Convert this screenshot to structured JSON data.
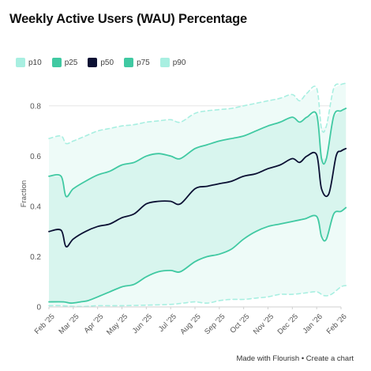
{
  "title": "Weekly Active Users (WAU) Percentage",
  "legend": [
    {
      "label": "p10",
      "color": "#a8efe1"
    },
    {
      "label": "p25",
      "color": "#40c9a2"
    },
    {
      "label": "p50",
      "color": "#0b1033"
    },
    {
      "label": "p75",
      "color": "#40c9a2"
    },
    {
      "label": "p90",
      "color": "#a8efe1"
    }
  ],
  "footer": {
    "made_with": "Made with Flourish",
    "separator": "•",
    "create": "Create a chart"
  },
  "colors": {
    "inner_band": "#d8f5ee",
    "outer_band": "#eefbf8",
    "p25_p75_line": "#40c9a2",
    "p10_p90_line": "#a8efe1",
    "median_line": "#0b1033",
    "grid": "#e6e6e6",
    "axis_text": "#555555"
  },
  "chart_data": {
    "type": "area",
    "title": "Weekly Active Users (WAU) Percentage",
    "xlabel": "",
    "ylabel": "Fraction",
    "ylim": [
      0,
      0.9
    ],
    "yticks": [
      0,
      0.2,
      0.4,
      0.6,
      0.8
    ],
    "xticks": [
      "Feb '25",
      "Mar '25",
      "Apr '25",
      "May '25",
      "Jun '25",
      "Jul '25",
      "Aug '25",
      "Sep '25",
      "Oct '25",
      "Nov '25",
      "Dec '25",
      "Jan '26",
      "Feb '26"
    ],
    "grid": "horizontal",
    "legend_position": "top-left",
    "x_unit": "months since Feb '25",
    "series": [
      {
        "name": "p10",
        "style": "dashed",
        "points": [
          [
            0,
            0.005
          ],
          [
            0.5,
            0.005
          ],
          [
            1,
            0.002
          ],
          [
            1.5,
            0.002
          ],
          [
            2,
            0.005
          ],
          [
            3,
            0.005
          ],
          [
            4,
            0.007
          ],
          [
            5,
            0.01
          ],
          [
            5.5,
            0.015
          ],
          [
            6,
            0.02
          ],
          [
            6.5,
            0.015
          ],
          [
            7,
            0.025
          ],
          [
            7.5,
            0.03
          ],
          [
            8,
            0.03
          ],
          [
            8.5,
            0.035
          ],
          [
            9,
            0.04
          ],
          [
            9.5,
            0.05
          ],
          [
            10,
            0.05
          ],
          [
            10.5,
            0.055
          ],
          [
            11,
            0.06
          ],
          [
            11.3,
            0.045
          ],
          [
            11.6,
            0.05
          ],
          [
            12,
            0.08
          ],
          [
            12.2,
            0.085
          ]
        ]
      },
      {
        "name": "p25",
        "points": [
          [
            0,
            0.02
          ],
          [
            0.6,
            0.02
          ],
          [
            0.9,
            0.015
          ],
          [
            1.3,
            0.02
          ],
          [
            1.6,
            0.025
          ],
          [
            2,
            0.04
          ],
          [
            2.5,
            0.06
          ],
          [
            3,
            0.08
          ],
          [
            3.5,
            0.09
          ],
          [
            4,
            0.12
          ],
          [
            4.5,
            0.14
          ],
          [
            5,
            0.145
          ],
          [
            5.4,
            0.14
          ],
          [
            6,
            0.18
          ],
          [
            6.5,
            0.2
          ],
          [
            7,
            0.21
          ],
          [
            7.5,
            0.23
          ],
          [
            8,
            0.27
          ],
          [
            8.5,
            0.3
          ],
          [
            9,
            0.32
          ],
          [
            9.5,
            0.33
          ],
          [
            10,
            0.34
          ],
          [
            10.5,
            0.35
          ],
          [
            11,
            0.36
          ],
          [
            11.2,
            0.28
          ],
          [
            11.4,
            0.27
          ],
          [
            11.7,
            0.37
          ],
          [
            12,
            0.38
          ],
          [
            12.2,
            0.395
          ]
        ]
      },
      {
        "name": "p50",
        "points": [
          [
            0,
            0.3
          ],
          [
            0.5,
            0.305
          ],
          [
            0.7,
            0.24
          ],
          [
            1,
            0.27
          ],
          [
            1.5,
            0.3
          ],
          [
            2,
            0.32
          ],
          [
            2.5,
            0.33
          ],
          [
            3,
            0.355
          ],
          [
            3.5,
            0.37
          ],
          [
            4,
            0.41
          ],
          [
            4.5,
            0.42
          ],
          [
            5,
            0.42
          ],
          [
            5.4,
            0.41
          ],
          [
            6,
            0.47
          ],
          [
            6.5,
            0.48
          ],
          [
            7,
            0.49
          ],
          [
            7.5,
            0.5
          ],
          [
            8,
            0.52
          ],
          [
            8.5,
            0.53
          ],
          [
            9,
            0.55
          ],
          [
            9.5,
            0.565
          ],
          [
            10,
            0.59
          ],
          [
            10.3,
            0.575
          ],
          [
            10.6,
            0.6
          ],
          [
            11,
            0.605
          ],
          [
            11.2,
            0.47
          ],
          [
            11.5,
            0.45
          ],
          [
            11.8,
            0.6
          ],
          [
            12,
            0.62
          ],
          [
            12.2,
            0.63
          ]
        ]
      },
      {
        "name": "p75",
        "points": [
          [
            0,
            0.52
          ],
          [
            0.5,
            0.52
          ],
          [
            0.7,
            0.44
          ],
          [
            1,
            0.47
          ],
          [
            1.5,
            0.5
          ],
          [
            2,
            0.525
          ],
          [
            2.5,
            0.54
          ],
          [
            3,
            0.565
          ],
          [
            3.5,
            0.575
          ],
          [
            4,
            0.6
          ],
          [
            4.5,
            0.61
          ],
          [
            5,
            0.6
          ],
          [
            5.4,
            0.59
          ],
          [
            6,
            0.63
          ],
          [
            6.5,
            0.645
          ],
          [
            7,
            0.66
          ],
          [
            7.5,
            0.67
          ],
          [
            8,
            0.68
          ],
          [
            8.5,
            0.7
          ],
          [
            9,
            0.72
          ],
          [
            9.5,
            0.735
          ],
          [
            10,
            0.755
          ],
          [
            10.3,
            0.735
          ],
          [
            10.6,
            0.755
          ],
          [
            11,
            0.765
          ],
          [
            11.2,
            0.59
          ],
          [
            11.4,
            0.59
          ],
          [
            11.7,
            0.76
          ],
          [
            12,
            0.78
          ],
          [
            12.2,
            0.79
          ]
        ]
      },
      {
        "name": "p90",
        "style": "dashed",
        "points": [
          [
            0,
            0.67
          ],
          [
            0.5,
            0.68
          ],
          [
            0.7,
            0.65
          ],
          [
            1,
            0.66
          ],
          [
            1.5,
            0.68
          ],
          [
            2,
            0.7
          ],
          [
            2.5,
            0.71
          ],
          [
            3,
            0.72
          ],
          [
            3.5,
            0.725
          ],
          [
            4,
            0.735
          ],
          [
            4.5,
            0.74
          ],
          [
            5,
            0.745
          ],
          [
            5.4,
            0.735
          ],
          [
            6,
            0.77
          ],
          [
            6.5,
            0.78
          ],
          [
            7,
            0.785
          ],
          [
            7.5,
            0.79
          ],
          [
            8,
            0.8
          ],
          [
            8.5,
            0.81
          ],
          [
            9,
            0.82
          ],
          [
            9.5,
            0.83
          ],
          [
            10,
            0.845
          ],
          [
            10.3,
            0.82
          ],
          [
            10.6,
            0.85
          ],
          [
            11,
            0.87
          ],
          [
            11.2,
            0.71
          ],
          [
            11.4,
            0.72
          ],
          [
            11.7,
            0.87
          ],
          [
            12,
            0.885
          ],
          [
            12.2,
            0.89
          ]
        ]
      }
    ]
  }
}
